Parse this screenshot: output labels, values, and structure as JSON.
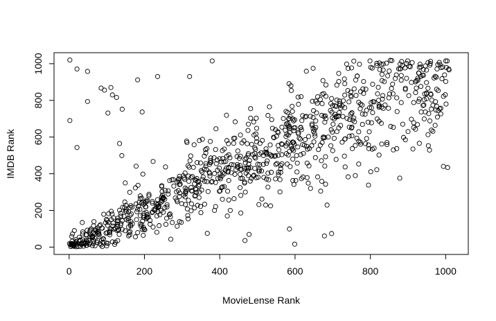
{
  "chart_data": {
    "type": "scatter",
    "title": "",
    "xlabel": "MovieLense Rank",
    "ylabel": "IMDB Rank",
    "xlim": [
      -40,
      1060
    ],
    "ylim": [
      -40,
      1060
    ],
    "xticks": [
      0,
      200,
      400,
      600,
      800,
      1000
    ],
    "yticks": [
      0,
      200,
      400,
      600,
      800,
      1000
    ],
    "marker": "open-circle",
    "marker_color": "#000000",
    "grid": false,
    "legend": "none",
    "points_visible": 1000,
    "generation": {
      "description": "Points approximate the rank relationship shown: dense near the diagonal, spread widening with rank, saturating near 1000.",
      "seed": 12345
    },
    "x": [],
    "y": []
  }
}
